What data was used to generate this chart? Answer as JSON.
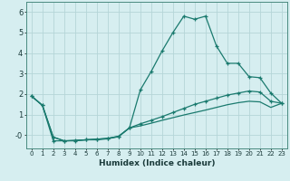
{
  "xlabel": "Humidex (Indice chaleur)",
  "background_color": "#d6eef0",
  "grid_color": "#b5d5d8",
  "line_color": "#1a7a6e",
  "xlim": [
    -0.5,
    23.5
  ],
  "ylim": [
    -0.65,
    6.5
  ],
  "xticks": [
    0,
    1,
    2,
    3,
    4,
    5,
    6,
    7,
    8,
    9,
    10,
    11,
    12,
    13,
    14,
    15,
    16,
    17,
    18,
    19,
    20,
    21,
    22,
    23
  ],
  "yticks": [
    0,
    1,
    2,
    3,
    4,
    5,
    6
  ],
  "line1_x": [
    0,
    1,
    2,
    3,
    4,
    5,
    6,
    7,
    8,
    9,
    10,
    11,
    12,
    13,
    14,
    15,
    16,
    17,
    18,
    19,
    20,
    21,
    22,
    23
  ],
  "line1_y": [
    1.9,
    1.45,
    -0.28,
    -0.28,
    -0.28,
    -0.23,
    -0.23,
    -0.18,
    -0.08,
    0.35,
    2.2,
    3.1,
    4.1,
    5.0,
    5.8,
    5.65,
    5.8,
    4.35,
    3.5,
    3.5,
    2.85,
    2.8,
    2.05,
    1.55
  ],
  "line2_x": [
    0,
    1,
    2,
    3,
    4,
    5,
    6,
    7,
    8,
    9,
    10,
    11,
    12,
    13,
    14,
    15,
    16,
    17,
    18,
    19,
    20,
    21,
    22,
    23
  ],
  "line2_y": [
    1.9,
    1.45,
    -0.1,
    -0.28,
    -0.26,
    -0.23,
    -0.2,
    -0.16,
    -0.06,
    0.35,
    0.55,
    0.72,
    0.9,
    1.1,
    1.3,
    1.5,
    1.65,
    1.8,
    1.95,
    2.05,
    2.15,
    2.1,
    1.65,
    1.55
  ],
  "line3_x": [
    0,
    1,
    2,
    3,
    4,
    5,
    6,
    7,
    8,
    9,
    10,
    11,
    12,
    13,
    14,
    15,
    16,
    17,
    18,
    19,
    20,
    21,
    22,
    23
  ],
  "line3_y": [
    1.9,
    1.45,
    -0.1,
    -0.28,
    -0.26,
    -0.23,
    -0.2,
    -0.16,
    -0.06,
    0.35,
    0.45,
    0.58,
    0.72,
    0.85,
    0.98,
    1.1,
    1.22,
    1.35,
    1.48,
    1.58,
    1.65,
    1.62,
    1.35,
    1.55
  ]
}
